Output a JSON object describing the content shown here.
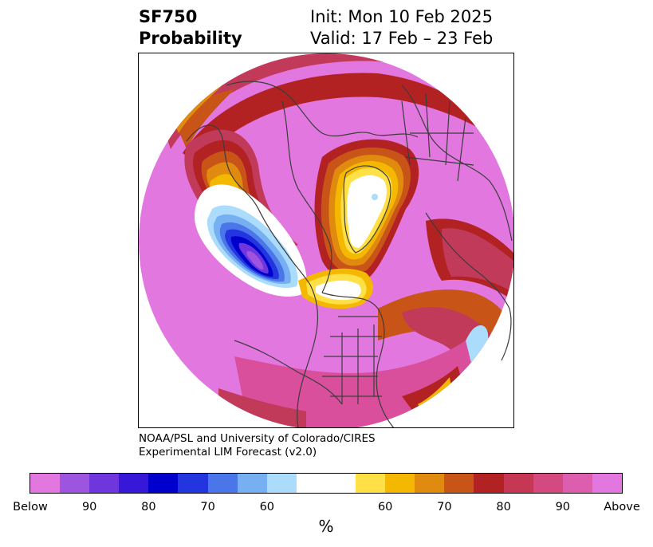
{
  "title": {
    "variable": "SF750",
    "quantity": "Probability",
    "init": "Init: Mon 10 Feb 2025",
    "valid": "Valid: 17 Feb – 23 Feb"
  },
  "credit": {
    "line1": "NOAA/PSL and University of Colorado/CIRES",
    "line2": "Experimental LIM Forecast (v2.0)"
  },
  "colorbar": {
    "unit": "%",
    "colors": [
      "#e377e0",
      "#9d55e0",
      "#6f36de",
      "#3718d8",
      "#0000cd",
      "#2235de",
      "#4a76ea",
      "#76b0f3",
      "#abdcfb",
      "#ffffff",
      "#ffffff",
      "#ffe047",
      "#f5b800",
      "#e08a10",
      "#c85418",
      "#b22222",
      "#c63753",
      "#d44a80",
      "#dd5eae",
      "#e377e0"
    ],
    "ticks": [
      "Below",
      "90",
      "80",
      "70",
      "60",
      "60",
      "70",
      "80",
      "90",
      "Above"
    ]
  },
  "map": {
    "projection": "north-polar-stereographic",
    "region": "Northern Hemisphere",
    "colors": {
      "above_max": "#e377e0",
      "above_90": "#d94f9b",
      "above_80": "#c23a5a",
      "above_75": "#b22222",
      "above_70": "#c85418",
      "above_65": "#e08a10",
      "above_60": "#f5b800",
      "above_55": "#ffe047",
      "neutral": "#ffffff",
      "below_60": "#abdcfb",
      "below_65": "#76b0f3",
      "below_70": "#4a76ea",
      "below_75": "#2235de",
      "below_80": "#0000cd",
      "below_85": "#3718d8",
      "below_90": "#6f36de",
      "below_95": "#9d55e0",
      "coast": "#3c3c3c"
    }
  }
}
